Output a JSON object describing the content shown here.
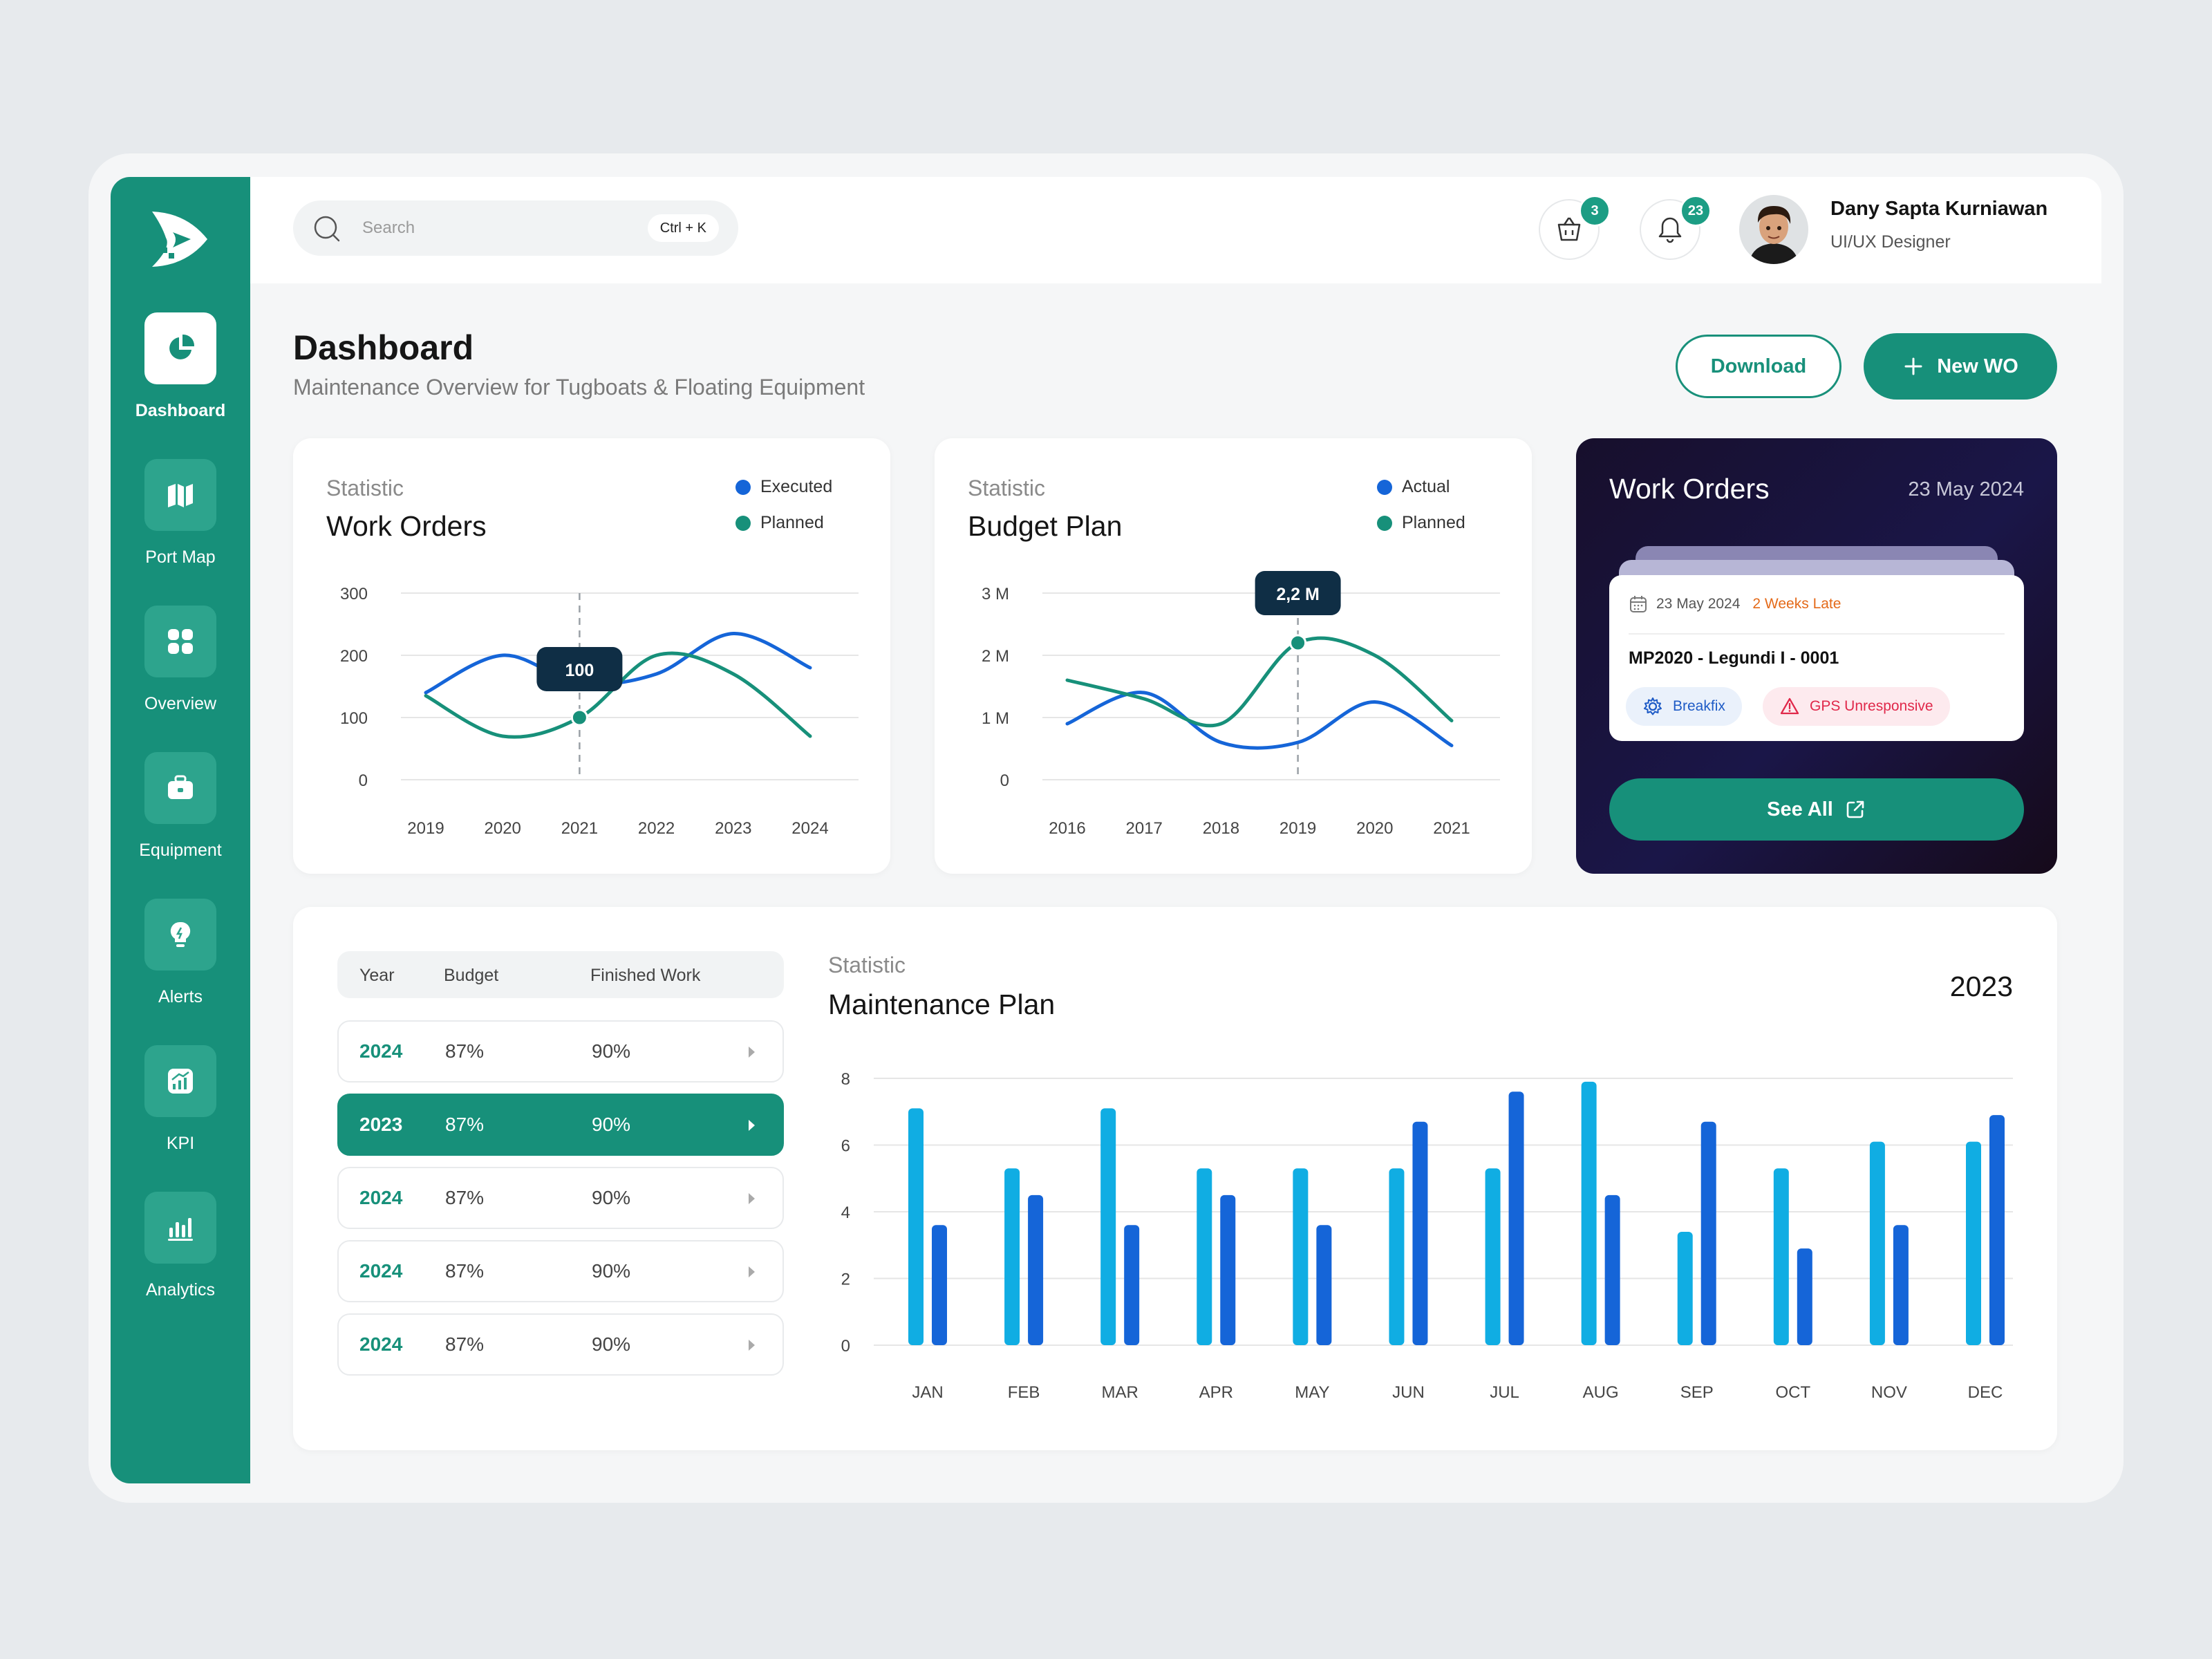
{
  "sidebar": {
    "items": [
      {
        "label": "Dashboard",
        "icon": "pie-chart-icon",
        "active": true
      },
      {
        "label": "Port Map",
        "icon": "map-icon",
        "active": false
      },
      {
        "label": "Overview",
        "icon": "grid-icon",
        "active": false
      },
      {
        "label": "Equipment",
        "icon": "briefcase-icon",
        "active": false
      },
      {
        "label": "Alerts",
        "icon": "lightbulb-icon",
        "active": false
      },
      {
        "label": "KPI",
        "icon": "kpi-chart-icon",
        "active": false
      },
      {
        "label": "Analytics",
        "icon": "bar-chart-icon",
        "active": false
      }
    ]
  },
  "header": {
    "search_placeholder": "Search",
    "search_shortcut": "Ctrl + K",
    "cart_count": "3",
    "notification_count": "23",
    "user_name": "Dany Sapta Kurniawan",
    "user_role": "UI/UX Designer"
  },
  "page": {
    "title": "Dashboard",
    "subtitle": "Maintenance Overview for Tugboats & Floating Equipment",
    "download_label": "Download",
    "new_wo_label": "New WO"
  },
  "work_orders_card": {
    "kicker": "Statistic",
    "title": "Work Orders"
  },
  "budget_card": {
    "kicker": "Statistic",
    "title": "Budget Plan"
  },
  "wo_panel": {
    "title": "Work Orders",
    "date": "23 May 2024",
    "item": {
      "date": "23 May 2024",
      "status": "2 Weeks Late",
      "code": "MP2020 - Legundi I - 0001",
      "tags": [
        "Breakfix",
        "GPS Unresponsive"
      ]
    },
    "see_all_label": "See All"
  },
  "table": {
    "headers": [
      "Year",
      "Budget",
      "Finished Work"
    ],
    "rows": [
      {
        "year": "2024",
        "budget": "87%",
        "finished": "90%"
      },
      {
        "year": "2023",
        "budget": "87%",
        "finished": "90%",
        "selected": true
      },
      {
        "year": "2024",
        "budget": "87%",
        "finished": "90%"
      },
      {
        "year": "2024",
        "budget": "87%",
        "finished": "90%"
      },
      {
        "year": "2024",
        "budget": "87%",
        "finished": "90%"
      }
    ]
  },
  "maintenance": {
    "kicker": "Statistic",
    "title": "Maintenance Plan",
    "year": "2023"
  },
  "colors": {
    "primary": "#17907a",
    "blue": "#1565d8",
    "cyan": "#10ade3",
    "dark_tooltip": "#0f2e45",
    "late_orange": "#e46a19",
    "alert_red": "#e0284a"
  },
  "chart_data": [
    {
      "type": "line",
      "x": [
        "2019",
        "2020",
        "2021",
        "2022",
        "2023",
        "2024"
      ],
      "ylim": [
        0,
        300
      ],
      "yticks": [
        "300",
        "200",
        "100",
        "0"
      ],
      "series": [
        {
          "name": "Executed",
          "color": "#1565d8",
          "values": [
            140,
            200,
            155,
            170,
            235,
            180
          ]
        },
        {
          "name": "Planned",
          "color": "#17907a",
          "values": [
            135,
            70,
            100,
            200,
            170,
            70
          ]
        }
      ],
      "tooltip": {
        "x": "2021",
        "value": "100"
      }
    },
    {
      "type": "line",
      "x": [
        "2016",
        "2017",
        "2018",
        "2019",
        "2020",
        "2021"
      ],
      "ylim": [
        0,
        3
      ],
      "yticks": [
        "3 M",
        "2 M",
        "1 M",
        "0"
      ],
      "series": [
        {
          "name": "Actual",
          "color": "#1565d8",
          "values": [
            0.9,
            1.4,
            0.6,
            0.6,
            1.25,
            0.55
          ]
        },
        {
          "name": "Planned",
          "color": "#17907a",
          "values": [
            1.6,
            1.3,
            0.9,
            2.2,
            2.0,
            0.95
          ]
        }
      ],
      "tooltip": {
        "x": "2019",
        "value": "2,2 M"
      }
    },
    {
      "type": "bar",
      "categories": [
        "JAN",
        "FEB",
        "MAR",
        "APR",
        "MAY",
        "JUN",
        "JUL",
        "AUG",
        "SEP",
        "OCT",
        "NOV",
        "DEC"
      ],
      "ylim": [
        0,
        8
      ],
      "yticks": [
        "8",
        "6",
        "4",
        "2",
        "0"
      ],
      "series": [
        {
          "color": "#10ade3",
          "values": [
            7.1,
            5.3,
            7.1,
            5.3,
            5.3,
            5.3,
            5.3,
            7.9,
            3.4,
            5.3,
            6.1,
            6.1
          ]
        },
        {
          "color": "#1565d8",
          "values": [
            3.6,
            4.5,
            3.6,
            4.5,
            3.6,
            6.7,
            7.6,
            4.5,
            6.7,
            2.9,
            3.6,
            6.9
          ]
        }
      ]
    }
  ]
}
